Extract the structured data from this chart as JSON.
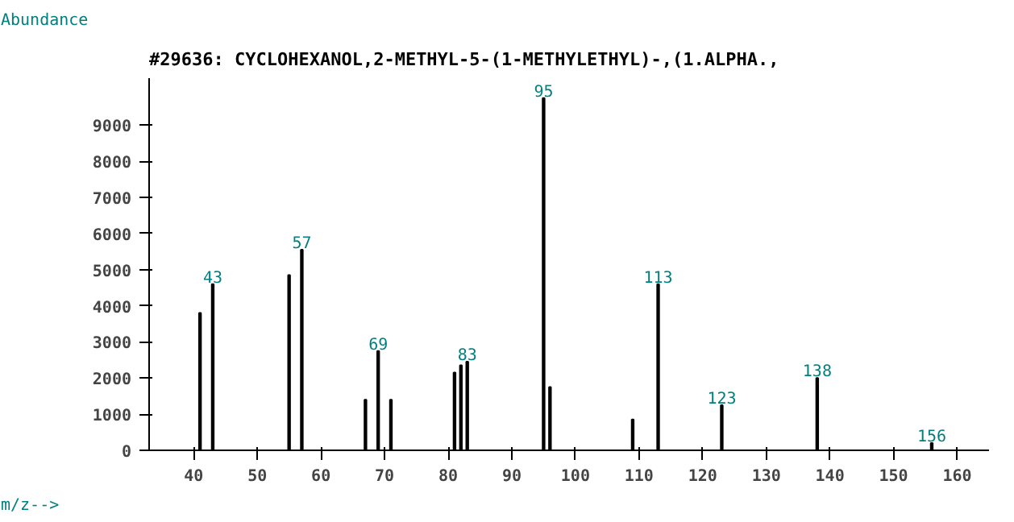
{
  "chart_data": {
    "type": "bar",
    "title": "#29636: CYCLOHEXANOL,2-METHYL-5-(1-METHYLETHYL)-,(1.ALPHA.,",
    "xlabel": "m/z-->",
    "ylabel": "Abundance",
    "x": [
      41,
      43,
      55,
      57,
      67,
      69,
      71,
      81,
      82,
      83,
      95,
      96,
      109,
      113,
      123,
      138,
      156
    ],
    "values": [
      3800,
      4600,
      4850,
      5550,
      1400,
      2750,
      1400,
      2150,
      2350,
      2450,
      9750,
      1750,
      850,
      4600,
      1250,
      2000,
      200
    ],
    "color": "#000000",
    "xlim": [
      33,
      165
    ],
    "ylim": [
      0,
      10300
    ],
    "xticks": [
      40,
      50,
      60,
      70,
      80,
      90,
      100,
      110,
      120,
      130,
      140,
      150,
      160
    ],
    "yticks": [
      0,
      1000,
      2000,
      3000,
      4000,
      5000,
      6000,
      7000,
      8000,
      9000
    ],
    "grid": false,
    "annotations": [
      {
        "text": "43",
        "x": 43,
        "y": 4600
      },
      {
        "text": "57",
        "x": 57,
        "y": 5550
      },
      {
        "text": "69",
        "x": 69,
        "y": 2750
      },
      {
        "text": "83",
        "x": 83,
        "y": 2450
      },
      {
        "text": "95",
        "x": 95,
        "y": 9750
      },
      {
        "text": "113",
        "x": 113,
        "y": 4600
      },
      {
        "text": "123",
        "x": 123,
        "y": 1250
      },
      {
        "text": "138",
        "x": 138,
        "y": 2000
      },
      {
        "text": "156",
        "x": 156,
        "y": 200
      }
    ]
  }
}
